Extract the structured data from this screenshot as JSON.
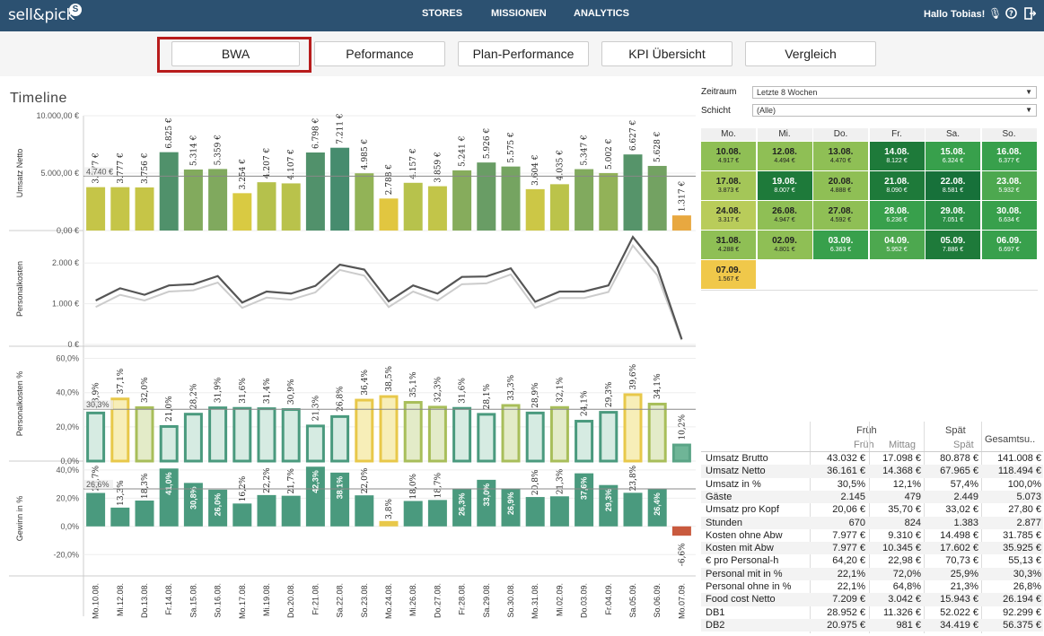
{
  "topbar": {
    "brand": "sell&pick",
    "nav": [
      "STORES",
      "MISSIONEN",
      "ANALYTICS"
    ],
    "greeting": "Hallo Tobias!"
  },
  "tabs": [
    "BWA",
    "Peformance",
    "Plan-Performance",
    "KPI Übersicht",
    "Vergleich"
  ],
  "page_title": "Timeline",
  "filters": {
    "zeitraum_label": "Zeitraum",
    "zeitraum_value": "Letzte 8 Wochen",
    "schicht_label": "Schicht",
    "schicht_value": "(Alle)"
  },
  "chart_data": [
    {
      "type": "bar",
      "categories": [
        "Mo.10.08.",
        "Mi.12.08.",
        "Do.13.08.",
        "Fr.14.08.",
        "Sa.15.08.",
        "So.16.08.",
        "Mo.17.08.",
        "Mi.19.08.",
        "Do.20.08.",
        "Fr.21.08.",
        "Sa.22.08.",
        "So.23.08.",
        "Mo.24.08.",
        "Mi.26.08.",
        "Do.27.08.",
        "Fr.28.08.",
        "Sa.29.08.",
        "So.30.08.",
        "Mo.31.08.",
        "Mi.02.09.",
        "Do.03.09.",
        "Fr.04.09.",
        "Sa.05.09.",
        "So.06.09.",
        "Mo.07.09."
      ],
      "values": [
        3777,
        3777,
        3756,
        6825,
        5314,
        5359,
        3254,
        4207,
        4107,
        6798,
        7211,
        4985,
        2788,
        4157,
        3859,
        5241,
        5926,
        5575,
        3604,
        4035,
        5347,
        5002,
        6627,
        5628,
        1317
      ],
      "labels": [
        "3.777 €",
        "3.777 €",
        "3.756 €",
        "6.825 €",
        "5.314 €",
        "5.359 €",
        "3.254 €",
        "4.207 €",
        "4.107 €",
        "6.798 €",
        "7.211 €",
        "4.985 €",
        "2.788 €",
        "4.157 €",
        "3.859 €",
        "5.241 €",
        "5.926 €",
        "5.575 €",
        "3.604 €",
        "4.035 €",
        "5.347 €",
        "5.002 €",
        "6.627 €",
        "5.628 €",
        "1.317 €"
      ],
      "ylabel": "Umsatz Netto",
      "yticks": [
        "10.000,00 €",
        "5.000,00 €",
        "0,00 €"
      ],
      "ylim": [
        0,
        10000
      ],
      "reference": 4740,
      "reference_label": "4.740 €"
    },
    {
      "type": "line",
      "ylabel": "Personalkosten",
      "yticks": [
        "2.000 €",
        "1.000 €",
        "0 €"
      ],
      "ylim": [
        0,
        2600
      ],
      "series": [
        {
          "values": [
            1080,
            1380,
            1220,
            1450,
            1480,
            1680,
            1030,
            1300,
            1250,
            1440,
            1960,
            1840,
            1060,
            1450,
            1250,
            1660,
            1670,
            1870,
            1050,
            1300,
            1300,
            1450,
            2640,
            1890,
            130
          ]
        },
        {
          "values": [
            920,
            1220,
            1080,
            1300,
            1330,
            1520,
            900,
            1150,
            1100,
            1280,
            1830,
            1690,
            920,
            1300,
            1080,
            1480,
            1500,
            1720,
            900,
            1140,
            1140,
            1290,
            2430,
            1700,
            110
          ]
        }
      ]
    },
    {
      "type": "bar",
      "ylabel": "Personalkosten %",
      "yticks": [
        "60,0%",
        "40,0%",
        "20,0%",
        "0,0%"
      ],
      "ylim": [
        0,
        0.65
      ],
      "reference": 0.303,
      "reference_label": "30,3%",
      "values": [
        0.289,
        0.371,
        0.32,
        0.21,
        0.282,
        0.319,
        0.316,
        0.314,
        0.309,
        0.213,
        0.268,
        0.364,
        0.385,
        0.351,
        0.323,
        0.316,
        0.281,
        0.333,
        0.289,
        0.321,
        0.241,
        0.293,
        0.396,
        0.341,
        0.102
      ],
      "labels": [
        "28,9%",
        "37,1%",
        "32,0%",
        "21,0%",
        "28,2%",
        "31,9%",
        "31,6%",
        "31,4%",
        "30,9%",
        "21,3%",
        "26,8%",
        "36,4%",
        "38,5%",
        "35,1%",
        "32,3%",
        "31,6%",
        "28,1%",
        "33,3%",
        "28,9%",
        "32,1%",
        "24,1%",
        "29,3%",
        "39,6%",
        "34,1%",
        "10,2%"
      ]
    },
    {
      "type": "bar",
      "ylabel": "Gewinn in %",
      "yticks": [
        "40,0%",
        "20,0%",
        "0,0%",
        "-20,0%"
      ],
      "ylim": [
        -0.3,
        0.45
      ],
      "reference": 0.266,
      "reference_label": "26,6%",
      "values": [
        0.237,
        0.133,
        0.183,
        0.41,
        0.308,
        0.26,
        0.162,
        0.222,
        0.217,
        0.423,
        0.381,
        0.22,
        0.038,
        0.18,
        0.187,
        0.263,
        0.33,
        0.269,
        0.208,
        0.213,
        0.376,
        0.293,
        0.238,
        0.264,
        -0.066
      ],
      "labels": [
        "23,7%",
        "13,3%",
        "18,3%",
        "41,0%",
        "30,8%",
        "26,0%",
        "16,2%",
        "22,2%",
        "21,7%",
        "42,3%",
        "38,1%",
        "22,0%",
        "3,8%",
        "18,0%",
        "18,7%",
        "26,3%",
        "33,0%",
        "26,9%",
        "20,8%",
        "21,3%",
        "37,6%",
        "29,3%",
        "23,8%",
        "26,4%",
        "-6,6%"
      ]
    }
  ],
  "calendar": {
    "headers": [
      "Mo.",
      "Mi.",
      "Do.",
      "Fr.",
      "Sa.",
      "So."
    ],
    "rows": [
      [
        {
          "d": "10.08.",
          "v": "4.917 €",
          "c": "#8fbf55"
        },
        {
          "d": "12.08.",
          "v": "4.494 €",
          "c": "#8fbf55"
        },
        {
          "d": "13.08.",
          "v": "4.470 €",
          "c": "#8fbf55"
        },
        {
          "d": "14.08.",
          "v": "8.122 €",
          "c": "#1e7a3a"
        },
        {
          "d": "15.08.",
          "v": "6.324 €",
          "c": "#38a04c"
        },
        {
          "d": "16.08.",
          "v": "6.377 €",
          "c": "#38a04c"
        }
      ],
      [
        {
          "d": "17.08.",
          "v": "3.873 €",
          "c": "#a4c658"
        },
        {
          "d": "19.08.",
          "v": "8.007 €",
          "c": "#1e7a3a"
        },
        {
          "d": "20.08.",
          "v": "4.888 €",
          "c": "#8fbf55"
        },
        {
          "d": "21.08.",
          "v": "8.090 €",
          "c": "#1e7a3a"
        },
        {
          "d": "22.08.",
          "v": "8.581 €",
          "c": "#17713a"
        },
        {
          "d": "23.08.",
          "v": "5.932 €",
          "c": "#4da84f"
        }
      ],
      [
        {
          "d": "24.08.",
          "v": "3.317 €",
          "c": "#b9cc5a"
        },
        {
          "d": "26.08.",
          "v": "4.947 €",
          "c": "#8fbf55"
        },
        {
          "d": "27.08.",
          "v": "4.592 €",
          "c": "#8fbf55"
        },
        {
          "d": "28.08.",
          "v": "6.236 €",
          "c": "#38a04c"
        },
        {
          "d": "29.08.",
          "v": "7.051 €",
          "c": "#2b8f45"
        },
        {
          "d": "30.08.",
          "v": "6.634 €",
          "c": "#38a04c"
        }
      ],
      [
        {
          "d": "31.08.",
          "v": "4.288 €",
          "c": "#8fbf55"
        },
        {
          "d": "02.09.",
          "v": "4.801 €",
          "c": "#8fbf55"
        },
        {
          "d": "03.09.",
          "v": "6.363 €",
          "c": "#38a04c"
        },
        {
          "d": "04.09.",
          "v": "5.952 €",
          "c": "#4da84f"
        },
        {
          "d": "05.09.",
          "v": "7.886 €",
          "c": "#1e7a3a"
        },
        {
          "d": "06.09.",
          "v": "6.697 €",
          "c": "#38a04c"
        }
      ],
      [
        {
          "d": "07.09.",
          "v": "1.567 €",
          "c": "#f0c84a"
        }
      ]
    ]
  },
  "table": {
    "group_frueh": "Früh",
    "group_spaet": "Spät",
    "col_total": "Gesamtsu..",
    "sub": [
      "Früh",
      "Mittag",
      "Spät"
    ],
    "rows": [
      [
        "Umsatz Brutto",
        "43.032 €",
        "17.098 €",
        "80.878 €",
        "141.008 €"
      ],
      [
        "Umsatz Netto",
        "36.161 €",
        "14.368 €",
        "67.965 €",
        "118.494 €"
      ],
      [
        "Umsatz in %",
        "30,5%",
        "12,1%",
        "57,4%",
        "100,0%"
      ],
      [
        "Gäste",
        "2.145",
        "479",
        "2.449",
        "5.073"
      ],
      [
        "Umsatz pro Kopf",
        "20,06 €",
        "35,70 €",
        "33,02 €",
        "27,80 €"
      ],
      [
        "Stunden",
        "670",
        "824",
        "1.383",
        "2.877"
      ],
      [
        "Kosten ohne Abw",
        "7.977 €",
        "9.310 €",
        "14.498 €",
        "31.785 €"
      ],
      [
        "Kosten mit Abw",
        "7.977 €",
        "10.345 €",
        "17.602 €",
        "35.925 €"
      ],
      [
        "€ pro Personal-h",
        "64,20 €",
        "22,98 €",
        "70,73 €",
        "55,13 €"
      ],
      [
        "Personal mit in %",
        "22,1%",
        "72,0%",
        "25,9%",
        "30,3%"
      ],
      [
        "Personal ohne in %",
        "22,1%",
        "64,8%",
        "21,3%",
        "26,8%"
      ],
      [
        "Food cost Netto",
        "7.209 €",
        "3.042 €",
        "15.943 €",
        "26.194 €"
      ],
      [
        "DB1",
        "28.952 €",
        "11.326 €",
        "52.022 €",
        "92.299 €"
      ],
      [
        "DB2",
        "20.975 €",
        "981 €",
        "34.419 €",
        "56.375 €"
      ]
    ]
  }
}
